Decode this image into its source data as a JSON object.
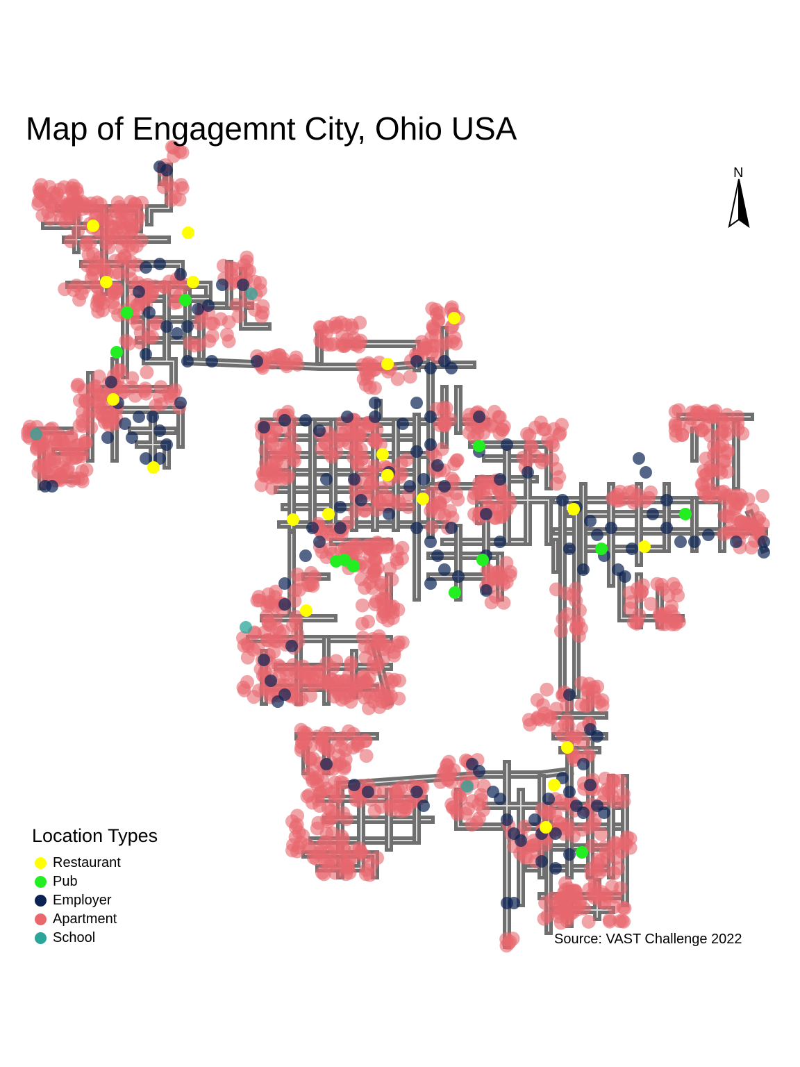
{
  "title": "Map of Engagemnt City, Ohio USA",
  "north_label": "N",
  "source": "Source: VAST Challenge 2022",
  "legend": {
    "title": "Location Types",
    "items": [
      {
        "label": "Restaurant",
        "color": "#ffff00"
      },
      {
        "label": "Pub",
        "color": "#22ee22"
      },
      {
        "label": "Employer",
        "color": "#0b2354"
      },
      {
        "label": "Apartment",
        "color": "#e8686e"
      },
      {
        "label": "School",
        "color": "#2aa59a"
      }
    ]
  },
  "colors": {
    "road": "#6f6f6f",
    "road_center": "#d9d9d9"
  }
}
